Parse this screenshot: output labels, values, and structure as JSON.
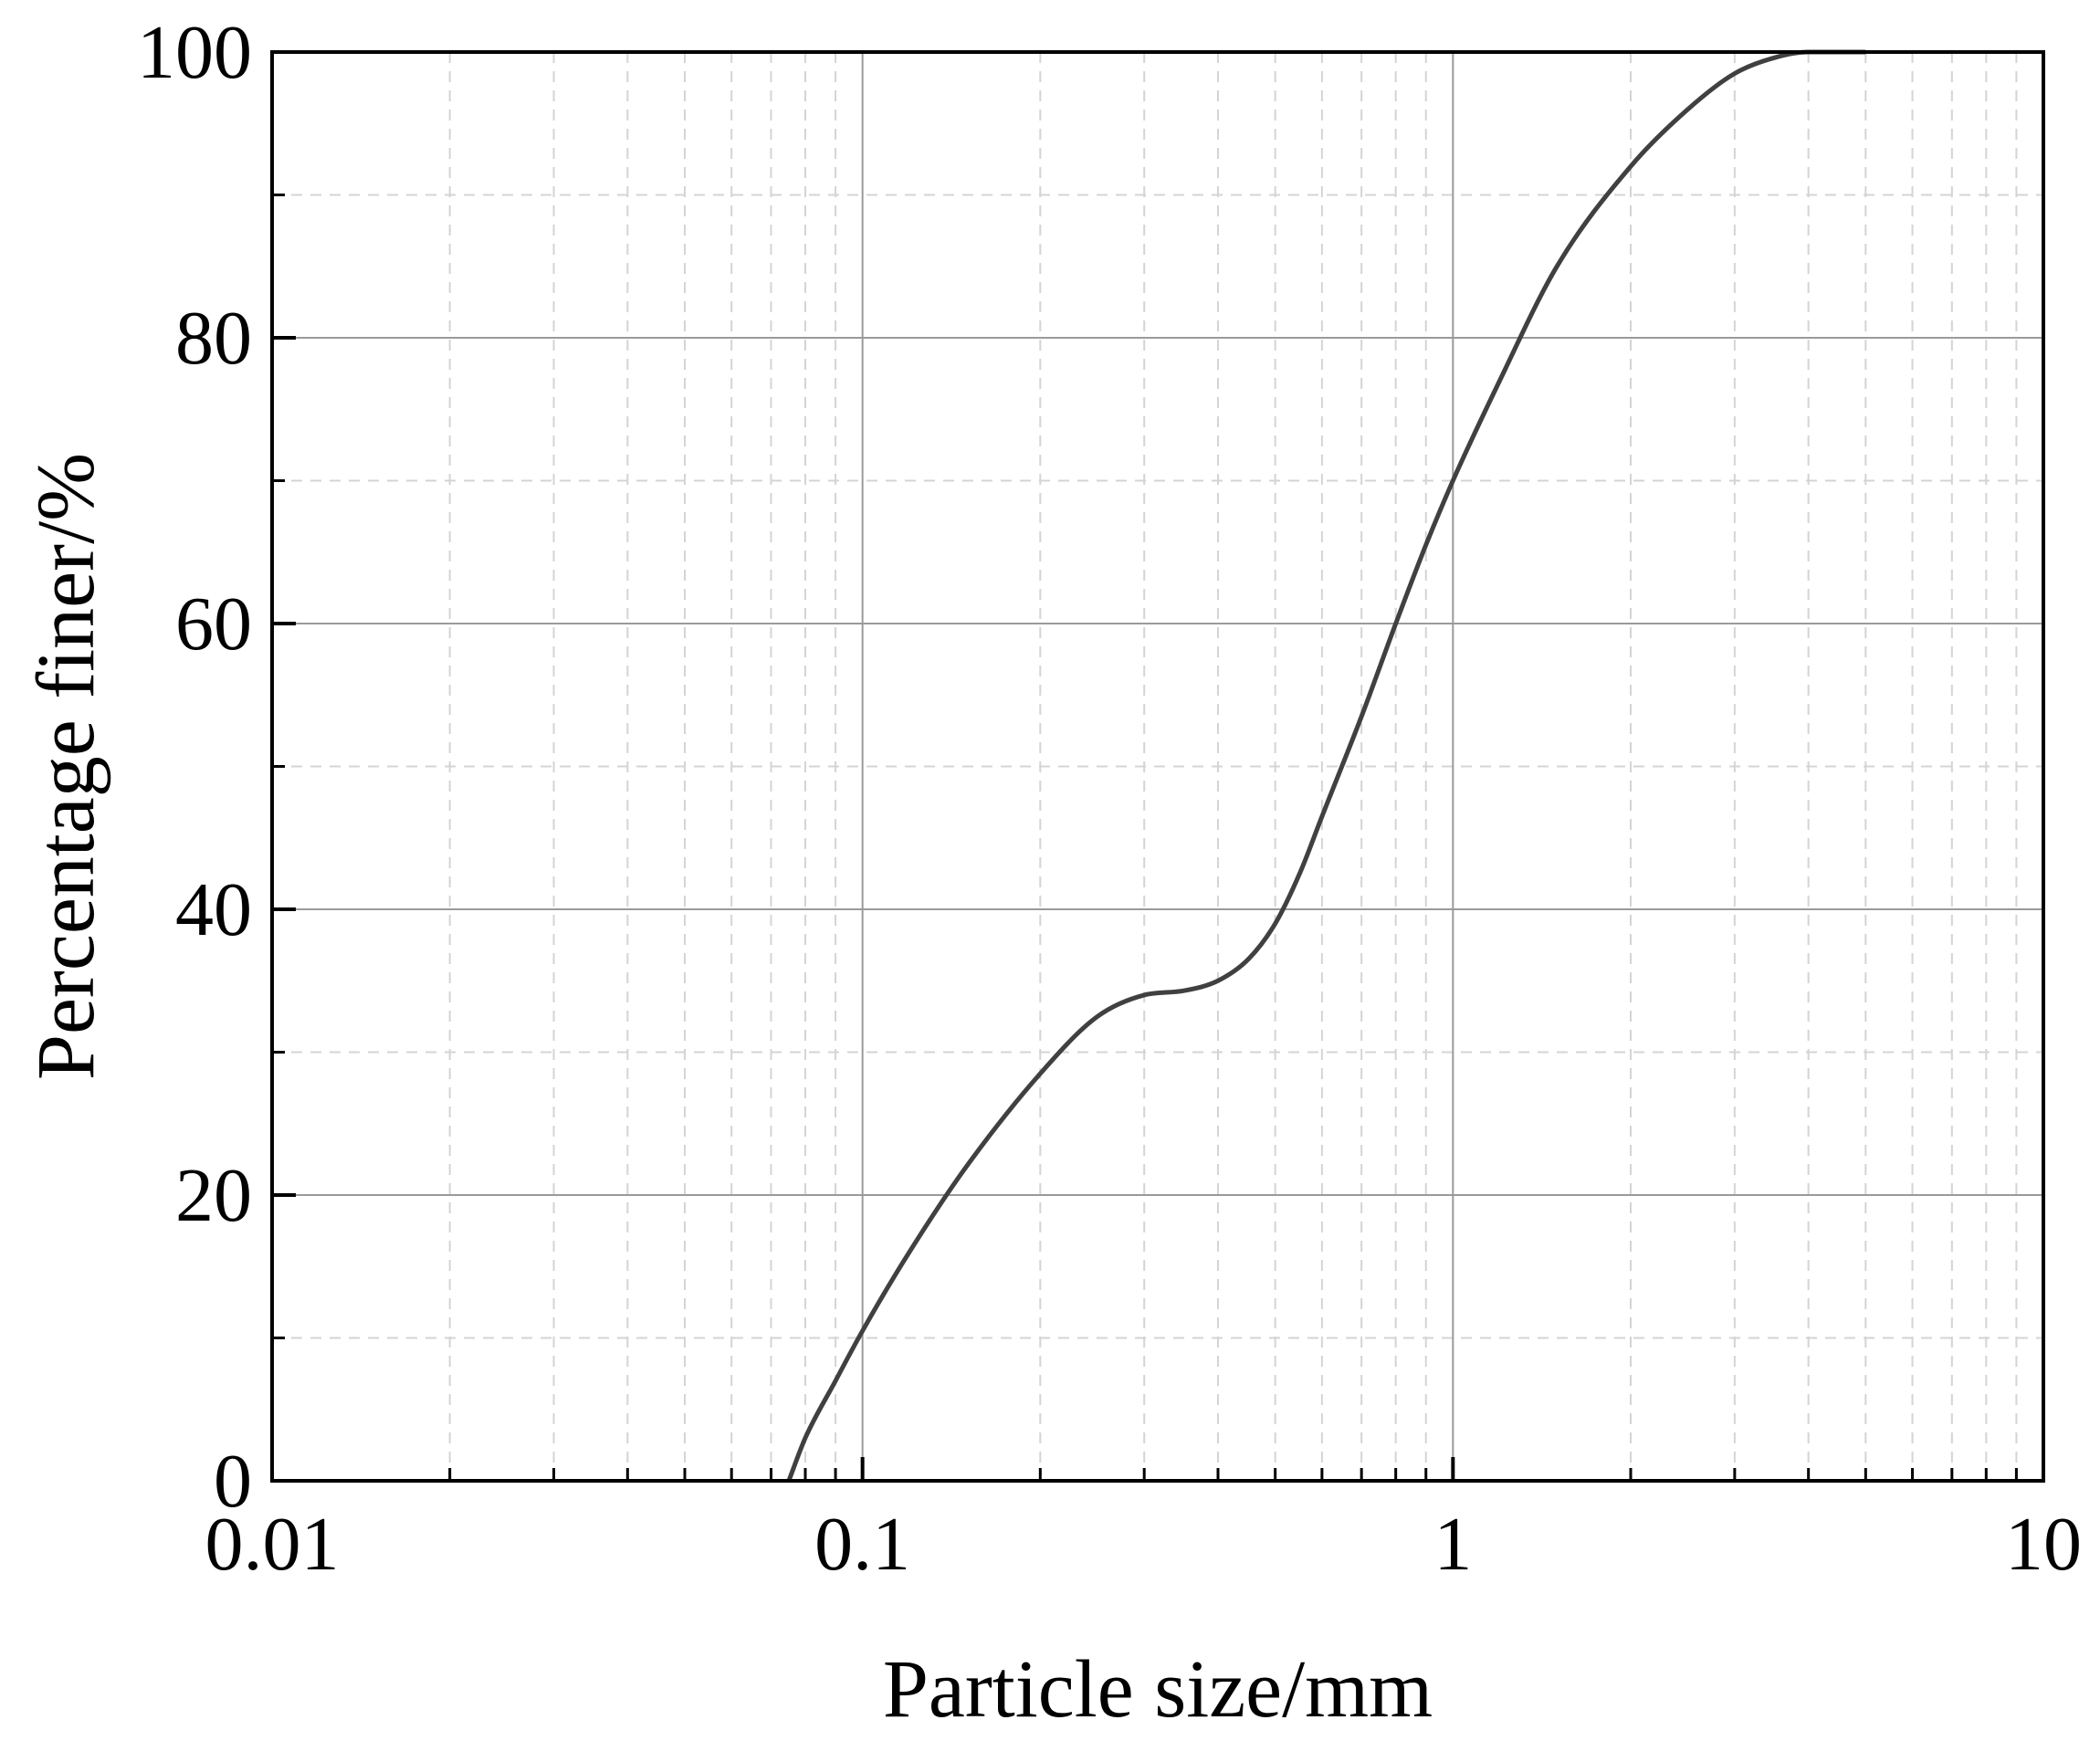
{
  "chart_data": {
    "type": "line",
    "xlabel": "Particle size/mm",
    "ylabel": "Percentage finer/%",
    "x_scale": "log",
    "xlim": [
      0.01,
      10
    ],
    "ylim": [
      0,
      100
    ],
    "x_ticks": [
      "0.01",
      "0.1",
      "1",
      "10"
    ],
    "y_ticks": [
      "0",
      "20",
      "40",
      "60",
      "80",
      "100"
    ],
    "grid": true,
    "line_color": "#404040",
    "series": [
      {
        "x": [
          0.075,
          0.08,
          0.09,
          0.1,
          0.12,
          0.15,
          0.2,
          0.25,
          0.3,
          0.35,
          0.4,
          0.45,
          0.5,
          0.55,
          0.6,
          0.7,
          0.8,
          0.9,
          1.0,
          1.2,
          1.5,
          2.0,
          2.5,
          3.0,
          3.5,
          4.0,
          5.0
        ],
        "y": [
          0,
          3,
          7,
          10.5,
          16,
          22,
          28.5,
          32.5,
          34,
          34.3,
          35,
          36.5,
          39,
          42.5,
          46.5,
          53.5,
          60,
          65.5,
          70,
          77,
          85,
          92,
          96,
          98.5,
          99.6,
          100,
          100
        ]
      }
    ]
  }
}
